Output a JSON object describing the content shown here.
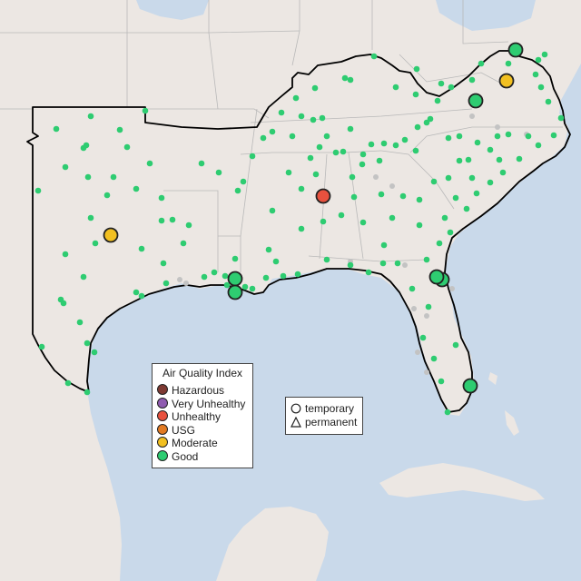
{
  "map": {
    "colors": {
      "water": "#c9d9ea",
      "land": "#ece7e3",
      "land_south": "#e6e0da",
      "state_border": "#b9b9b9",
      "region_outline": "#000000",
      "minor_site": "#c3c3c3"
    }
  },
  "legend": {
    "title": "Air Quality Index",
    "items": [
      {
        "label": "Hazardous",
        "color": "#7e3a33"
      },
      {
        "label": "Very Unhealthy",
        "color": "#8f5bb0"
      },
      {
        "label": "Unhealthy",
        "color": "#e8513e"
      },
      {
        "label": "USG",
        "color": "#e27a22"
      },
      {
        "label": "Moderate",
        "color": "#f2c021"
      },
      {
        "label": "Good",
        "color": "#2ecc71"
      }
    ]
  },
  "site_types": {
    "items": [
      {
        "label": "temporary",
        "icon": "circle-icon"
      },
      {
        "label": "permanent",
        "icon": "triangle-icon"
      }
    ]
  }
}
